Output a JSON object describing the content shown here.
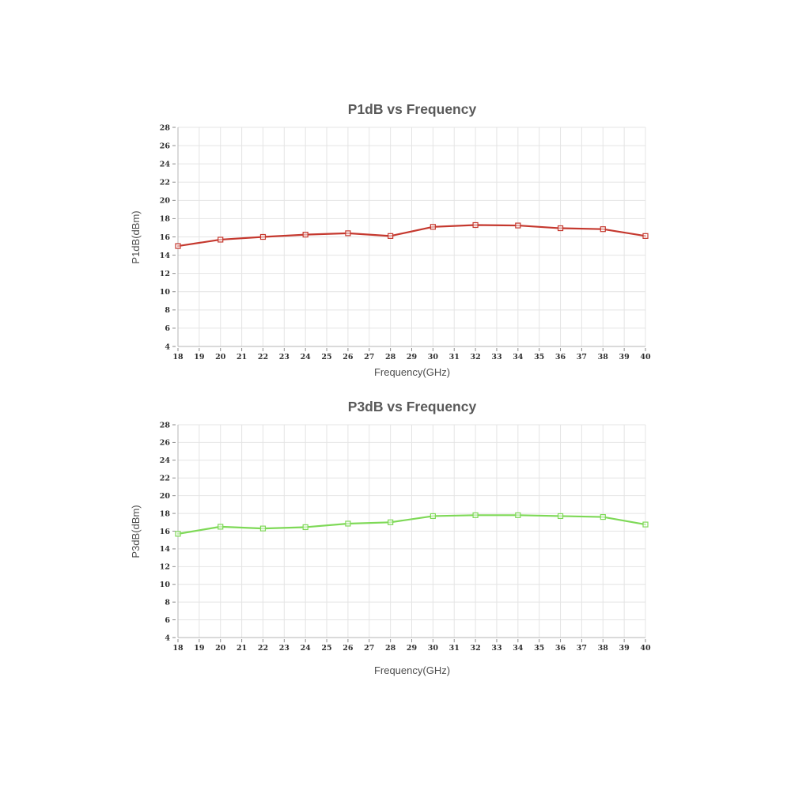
{
  "page": {
    "background": "#ffffff"
  },
  "colors": {
    "grid": "#e4e4e4",
    "axis": "#b6b6b6",
    "tick": "#8a8a8a",
    "tick_label": "#2e2e2e",
    "title": "#595959",
    "axis_label": "#4d4d4d",
    "p1db_line": "#c5382e",
    "p3db_line": "#7ed957"
  },
  "chart_data": [
    {
      "type": "line",
      "title": "P1dB vs Frequency",
      "xlabel": "Frequency(GHz)",
      "ylabel": "P1dB(dBm)",
      "xlim": [
        18,
        40
      ],
      "ylim": [
        4,
        28
      ],
      "xticks": [
        18,
        19,
        20,
        21,
        22,
        23,
        24,
        25,
        26,
        27,
        28,
        29,
        30,
        31,
        32,
        33,
        34,
        35,
        36,
        37,
        38,
        39,
        40
      ],
      "yticks": [
        4,
        6,
        8,
        10,
        12,
        14,
        16,
        18,
        20,
        22,
        24,
        26,
        28
      ],
      "grid": true,
      "legend": "none",
      "series": [
        {
          "name": "P1dB",
          "color": "#c5382e",
          "marker": "square",
          "x": [
            18,
            20,
            22,
            24,
            26,
            28,
            30,
            32,
            34,
            36,
            38,
            40
          ],
          "y": [
            15.0,
            15.7,
            16.0,
            16.25,
            16.4,
            16.1,
            17.1,
            17.3,
            17.25,
            16.95,
            16.85,
            16.1
          ]
        }
      ]
    },
    {
      "type": "line",
      "title": "P3dB vs Frequency",
      "xlabel": "Frequency(GHz)",
      "ylabel": "P3dB(dBm)",
      "xlim": [
        18,
        40
      ],
      "ylim": [
        4,
        28
      ],
      "xticks": [
        18,
        19,
        20,
        21,
        22,
        23,
        24,
        25,
        26,
        27,
        28,
        29,
        30,
        31,
        32,
        33,
        34,
        35,
        36,
        37,
        38,
        39,
        40
      ],
      "yticks": [
        4,
        6,
        8,
        10,
        12,
        14,
        16,
        18,
        20,
        22,
        24,
        26,
        28
      ],
      "grid": true,
      "legend": "none",
      "series": [
        {
          "name": "P3dB",
          "color": "#7ed957",
          "marker": "square",
          "x": [
            18,
            20,
            22,
            24,
            26,
            28,
            30,
            32,
            34,
            36,
            38,
            40
          ],
          "y": [
            15.7,
            16.5,
            16.3,
            16.45,
            16.85,
            17.0,
            17.7,
            17.8,
            17.8,
            17.7,
            17.6,
            16.75
          ]
        }
      ]
    }
  ]
}
